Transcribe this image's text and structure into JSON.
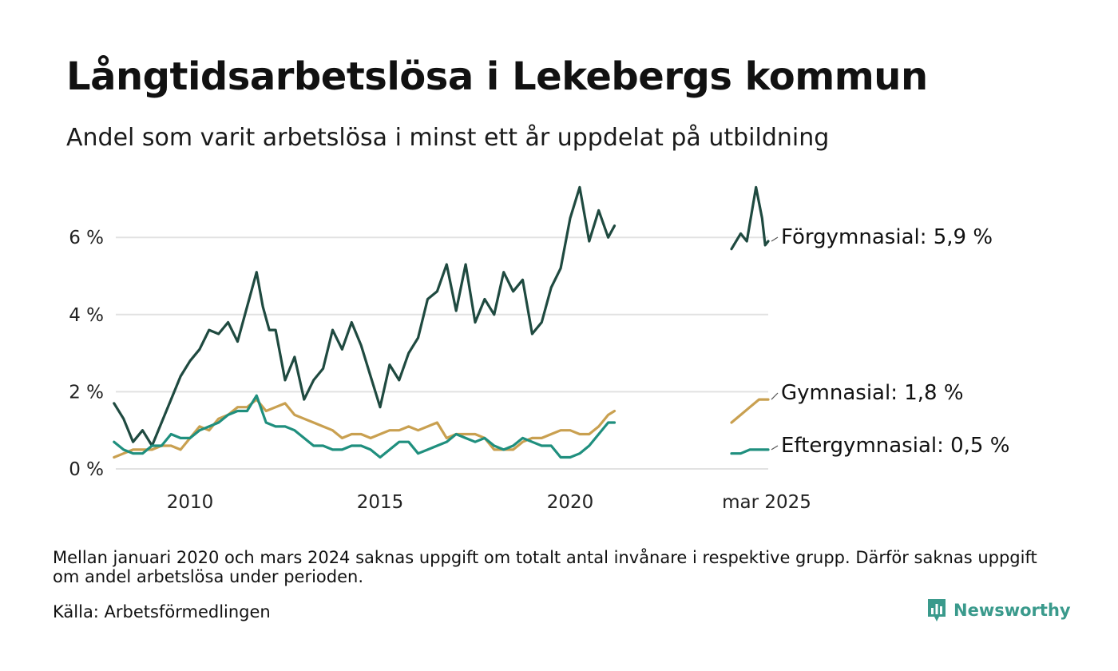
{
  "header": {
    "title": "Långtidsarbetslösa i Lekebergs kommun",
    "subtitle": "Andel som varit arbetslösa i minst ett år uppdelat på utbildning"
  },
  "footer": {
    "note": "Mellan januari 2020 och mars 2024 saknas uppgift om totalt antal invånare i respektive grupp. Därför saknas uppgift om andel arbetslösa under perioden.",
    "source": "Källa: Arbetsförmedlingen",
    "brand": "Newsworthy",
    "brand_color": "#3a9a8c",
    "brand_icon": "bar-chart-speech-bubble-icon"
  },
  "chart_data": {
    "type": "line",
    "title": "Långtidsarbetslösa i Lekebergs kommun",
    "subtitle": "Andel som varit arbetslösa i minst ett år uppdelat på utbildning",
    "x_ticks": [
      "2010",
      "2015",
      "2020",
      "mar 2025"
    ],
    "y_ticks": [
      "0 %",
      "2 %",
      "4 %",
      "6 %"
    ],
    "y_tick_values": [
      0,
      2,
      4,
      6
    ],
    "ylim": [
      0,
      7.4
    ],
    "grid": true,
    "legend": "direct end labels at right",
    "series": [
      {
        "name": "Förgymnasial",
        "end_label": "Förgymnasial: 5,9 %",
        "color": "#1f4a40",
        "points": [
          [
            "2008-01",
            1.7
          ],
          [
            "2008-04",
            1.3
          ],
          [
            "2008-07",
            0.7
          ],
          [
            "2008-10",
            1.0
          ],
          [
            "2009-01",
            0.6
          ],
          [
            "2009-04",
            1.2
          ],
          [
            "2009-07",
            1.8
          ],
          [
            "2009-10",
            2.4
          ],
          [
            "2010-01",
            2.8
          ],
          [
            "2010-04",
            3.1
          ],
          [
            "2010-07",
            3.6
          ],
          [
            "2010-10",
            3.5
          ],
          [
            "2011-01",
            3.8
          ],
          [
            "2011-04",
            3.3
          ],
          [
            "2011-07",
            4.2
          ],
          [
            "2011-10",
            5.1
          ],
          [
            "2011-12",
            4.2
          ],
          [
            "2012-02",
            3.6
          ],
          [
            "2012-04",
            3.6
          ],
          [
            "2012-07",
            2.3
          ],
          [
            "2012-10",
            2.9
          ],
          [
            "2013-01",
            1.8
          ],
          [
            "2013-04",
            2.3
          ],
          [
            "2013-07",
            2.6
          ],
          [
            "2013-10",
            3.6
          ],
          [
            "2014-01",
            3.1
          ],
          [
            "2014-04",
            3.8
          ],
          [
            "2014-07",
            3.2
          ],
          [
            "2014-10",
            2.4
          ],
          [
            "2015-01",
            1.6
          ],
          [
            "2015-04",
            2.7
          ],
          [
            "2015-07",
            2.3
          ],
          [
            "2015-10",
            3.0
          ],
          [
            "2016-01",
            3.4
          ],
          [
            "2016-04",
            4.4
          ],
          [
            "2016-07",
            4.6
          ],
          [
            "2016-10",
            5.3
          ],
          [
            "2017-01",
            4.1
          ],
          [
            "2017-04",
            5.3
          ],
          [
            "2017-07",
            3.8
          ],
          [
            "2017-10",
            4.4
          ],
          [
            "2018-01",
            4.0
          ],
          [
            "2018-04",
            5.1
          ],
          [
            "2018-07",
            4.6
          ],
          [
            "2018-10",
            4.9
          ],
          [
            "2019-01",
            3.5
          ],
          [
            "2019-04",
            3.8
          ],
          [
            "2019-07",
            4.7
          ],
          [
            "2019-10",
            5.2
          ],
          [
            "2020-01",
            6.5
          ],
          [
            "2020-04",
            7.3
          ],
          [
            "2020-07",
            5.9
          ],
          [
            "2020-10",
            6.7
          ],
          [
            "2021-01",
            6.0
          ],
          [
            "2021-03",
            6.3
          ],
          [
            "2024-03",
            5.7
          ],
          [
            "2024-06",
            6.1
          ],
          [
            "2024-08",
            5.9
          ],
          [
            "2024-11",
            7.3
          ],
          [
            "2025-01",
            6.5
          ],
          [
            "2025-02",
            5.8
          ],
          [
            "2025-03",
            5.9
          ]
        ]
      },
      {
        "name": "Gymnasial",
        "end_label": "Gymnasial: 1,8 %",
        "color": "#c9a050",
        "points": [
          [
            "2008-01",
            0.3
          ],
          [
            "2008-04",
            0.4
          ],
          [
            "2008-07",
            0.5
          ],
          [
            "2008-10",
            0.5
          ],
          [
            "2009-01",
            0.5
          ],
          [
            "2009-04",
            0.6
          ],
          [
            "2009-07",
            0.6
          ],
          [
            "2009-10",
            0.5
          ],
          [
            "2010-01",
            0.8
          ],
          [
            "2010-04",
            1.1
          ],
          [
            "2010-07",
            1.0
          ],
          [
            "2010-10",
            1.3
          ],
          [
            "2011-01",
            1.4
          ],
          [
            "2011-04",
            1.6
          ],
          [
            "2011-07",
            1.6
          ],
          [
            "2011-10",
            1.8
          ],
          [
            "2012-01",
            1.5
          ],
          [
            "2012-04",
            1.6
          ],
          [
            "2012-07",
            1.7
          ],
          [
            "2012-10",
            1.4
          ],
          [
            "2013-01",
            1.3
          ],
          [
            "2013-04",
            1.2
          ],
          [
            "2013-07",
            1.1
          ],
          [
            "2013-10",
            1.0
          ],
          [
            "2014-01",
            0.8
          ],
          [
            "2014-04",
            0.9
          ],
          [
            "2014-07",
            0.9
          ],
          [
            "2014-10",
            0.8
          ],
          [
            "2015-01",
            0.9
          ],
          [
            "2015-04",
            1.0
          ],
          [
            "2015-07",
            1.0
          ],
          [
            "2015-10",
            1.1
          ],
          [
            "2016-01",
            1.0
          ],
          [
            "2016-04",
            1.1
          ],
          [
            "2016-07",
            1.2
          ],
          [
            "2016-10",
            0.8
          ],
          [
            "2017-01",
            0.9
          ],
          [
            "2017-04",
            0.9
          ],
          [
            "2017-07",
            0.9
          ],
          [
            "2017-10",
            0.8
          ],
          [
            "2018-01",
            0.5
          ],
          [
            "2018-04",
            0.5
          ],
          [
            "2018-07",
            0.5
          ],
          [
            "2018-10",
            0.7
          ],
          [
            "2019-01",
            0.8
          ],
          [
            "2019-04",
            0.8
          ],
          [
            "2019-07",
            0.9
          ],
          [
            "2019-10",
            1.0
          ],
          [
            "2020-01",
            1.0
          ],
          [
            "2020-04",
            0.9
          ],
          [
            "2020-07",
            0.9
          ],
          [
            "2020-10",
            1.1
          ],
          [
            "2021-01",
            1.4
          ],
          [
            "2021-03",
            1.5
          ],
          [
            "2024-03",
            1.2
          ],
          [
            "2024-06",
            1.4
          ],
          [
            "2024-09",
            1.6
          ],
          [
            "2024-12",
            1.8
          ],
          [
            "2025-02",
            1.8
          ],
          [
            "2025-03",
            1.8
          ]
        ]
      },
      {
        "name": "Eftergymnasial",
        "end_label": "Eftergymnasial: 0,5 %",
        "color": "#1f8f7e",
        "points": [
          [
            "2008-01",
            0.7
          ],
          [
            "2008-04",
            0.5
          ],
          [
            "2008-07",
            0.4
          ],
          [
            "2008-10",
            0.4
          ],
          [
            "2009-01",
            0.6
          ],
          [
            "2009-04",
            0.6
          ],
          [
            "2009-07",
            0.9
          ],
          [
            "2009-10",
            0.8
          ],
          [
            "2010-01",
            0.8
          ],
          [
            "2010-04",
            1.0
          ],
          [
            "2010-07",
            1.1
          ],
          [
            "2010-10",
            1.2
          ],
          [
            "2011-01",
            1.4
          ],
          [
            "2011-04",
            1.5
          ],
          [
            "2011-07",
            1.5
          ],
          [
            "2011-10",
            1.9
          ],
          [
            "2012-01",
            1.2
          ],
          [
            "2012-04",
            1.1
          ],
          [
            "2012-07",
            1.1
          ],
          [
            "2012-10",
            1.0
          ],
          [
            "2013-01",
            0.8
          ],
          [
            "2013-04",
            0.6
          ],
          [
            "2013-07",
            0.6
          ],
          [
            "2013-10",
            0.5
          ],
          [
            "2014-01",
            0.5
          ],
          [
            "2014-04",
            0.6
          ],
          [
            "2014-07",
            0.6
          ],
          [
            "2014-10",
            0.5
          ],
          [
            "2015-01",
            0.3
          ],
          [
            "2015-04",
            0.5
          ],
          [
            "2015-07",
            0.7
          ],
          [
            "2015-10",
            0.7
          ],
          [
            "2016-01",
            0.4
          ],
          [
            "2016-04",
            0.5
          ],
          [
            "2016-07",
            0.6
          ],
          [
            "2016-10",
            0.7
          ],
          [
            "2017-01",
            0.9
          ],
          [
            "2017-04",
            0.8
          ],
          [
            "2017-07",
            0.7
          ],
          [
            "2017-10",
            0.8
          ],
          [
            "2018-01",
            0.6
          ],
          [
            "2018-04",
            0.5
          ],
          [
            "2018-07",
            0.6
          ],
          [
            "2018-10",
            0.8
          ],
          [
            "2019-01",
            0.7
          ],
          [
            "2019-04",
            0.6
          ],
          [
            "2019-07",
            0.6
          ],
          [
            "2019-10",
            0.3
          ],
          [
            "2020-01",
            0.3
          ],
          [
            "2020-04",
            0.4
          ],
          [
            "2020-07",
            0.6
          ],
          [
            "2020-10",
            0.9
          ],
          [
            "2021-01",
            1.2
          ],
          [
            "2021-03",
            1.2
          ],
          [
            "2024-03",
            0.4
          ],
          [
            "2024-06",
            0.4
          ],
          [
            "2024-09",
            0.5
          ],
          [
            "2024-12",
            0.5
          ],
          [
            "2025-02",
            0.5
          ],
          [
            "2025-03",
            0.5
          ]
        ]
      }
    ]
  }
}
